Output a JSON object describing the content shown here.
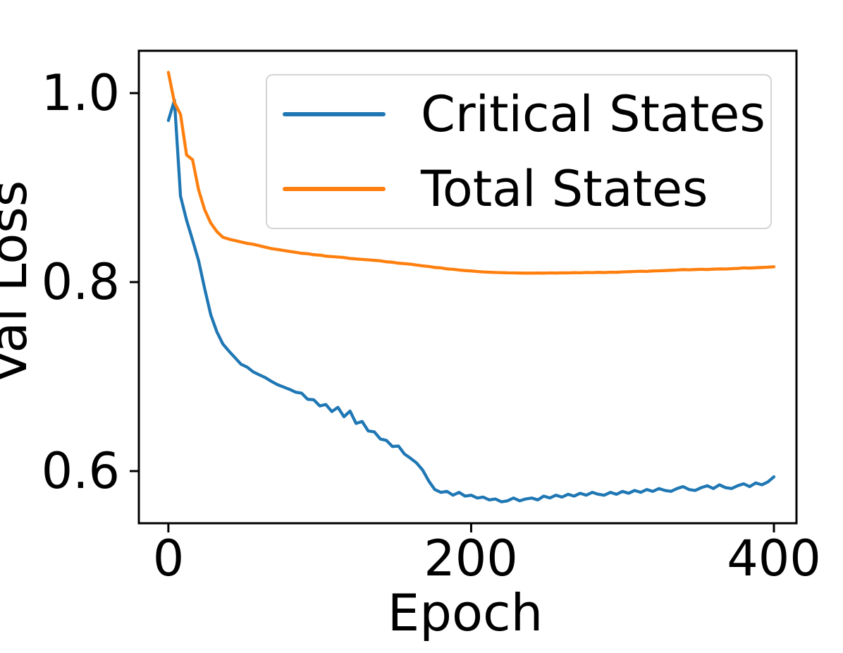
{
  "chart_data": {
    "type": "line",
    "title": "",
    "xlabel": "Epoch",
    "ylabel": "Val Loss",
    "xlim": [
      -19.5,
      414.9
    ],
    "ylim": [
      0.5448,
      1.0448
    ],
    "xticks": [
      0,
      200,
      400
    ],
    "yticks": [
      1.0,
      0.8,
      0.6
    ],
    "xtick_labels": [
      "0",
      "200",
      "400"
    ],
    "ytick_labels": [
      "1.0",
      "0.8",
      "0.6"
    ],
    "grid": false,
    "legend_position": "upper right inside",
    "axis_color": "#000000",
    "legend_edge_color": "#d4d4d4",
    "x": [
      0,
      4,
      8,
      12,
      16,
      20,
      24,
      28,
      32,
      36,
      40,
      44,
      48,
      52,
      56,
      60,
      64,
      68,
      72,
      76,
      80,
      84,
      88,
      92,
      96,
      100,
      104,
      108,
      112,
      116,
      120,
      124,
      128,
      132,
      136,
      140,
      144,
      148,
      152,
      156,
      160,
      164,
      168,
      172,
      176,
      180,
      184,
      188,
      192,
      196,
      200,
      204,
      208,
      212,
      216,
      220,
      224,
      228,
      232,
      236,
      240,
      244,
      248,
      252,
      256,
      260,
      264,
      268,
      272,
      276,
      280,
      284,
      288,
      292,
      296,
      300,
      304,
      308,
      312,
      316,
      320,
      324,
      328,
      332,
      336,
      340,
      344,
      348,
      352,
      356,
      360,
      364,
      368,
      372,
      376,
      380,
      384,
      388,
      392,
      396,
      400
    ],
    "series": [
      {
        "name": "Critical States",
        "color": "#1f77b4",
        "values": [
          0.971,
          0.9925,
          0.891,
          0.8655,
          0.8445,
          0.8225,
          0.793,
          0.7655,
          0.7475,
          0.7345,
          0.727,
          0.72,
          0.713,
          0.71,
          0.705,
          0.702,
          0.699,
          0.695,
          0.6915,
          0.689,
          0.6865,
          0.6835,
          0.6825,
          0.676,
          0.6755,
          0.669,
          0.6705,
          0.663,
          0.6675,
          0.6575,
          0.6635,
          0.6505,
          0.6525,
          0.6425,
          0.6415,
          0.634,
          0.6325,
          0.626,
          0.6265,
          0.618,
          0.6135,
          0.6085,
          0.601,
          0.5895,
          0.5805,
          0.5775,
          0.5785,
          0.5745,
          0.5775,
          0.5735,
          0.5745,
          0.5715,
          0.5725,
          0.5695,
          0.5705,
          0.5675,
          0.5685,
          0.5715,
          0.5685,
          0.5705,
          0.5715,
          0.5695,
          0.5735,
          0.5715,
          0.5745,
          0.5725,
          0.5755,
          0.5735,
          0.5765,
          0.5745,
          0.5775,
          0.5755,
          0.5745,
          0.5775,
          0.5755,
          0.5785,
          0.5765,
          0.5795,
          0.5775,
          0.5805,
          0.5785,
          0.5815,
          0.5795,
          0.5785,
          0.5815,
          0.5835,
          0.5805,
          0.5795,
          0.5825,
          0.5845,
          0.5815,
          0.5855,
          0.5825,
          0.5815,
          0.5845,
          0.5865,
          0.5835,
          0.5875,
          0.5855,
          0.5885,
          0.594
        ]
      },
      {
        "name": "Total States",
        "color": "#ff7f0e",
        "values": [
          1.022,
          0.99,
          0.9775,
          0.9345,
          0.9295,
          0.8975,
          0.8765,
          0.8625,
          0.8535,
          0.8475,
          0.8455,
          0.844,
          0.8425,
          0.841,
          0.84,
          0.8385,
          0.837,
          0.8355,
          0.8345,
          0.8335,
          0.8325,
          0.8315,
          0.8305,
          0.83,
          0.829,
          0.8285,
          0.8275,
          0.827,
          0.8265,
          0.826,
          0.825,
          0.8245,
          0.824,
          0.8235,
          0.823,
          0.8225,
          0.8215,
          0.821,
          0.82,
          0.8195,
          0.819,
          0.818,
          0.8172,
          0.8165,
          0.8155,
          0.815,
          0.814,
          0.8135,
          0.8128,
          0.8122,
          0.8118,
          0.8112,
          0.8108,
          0.8105,
          0.8102,
          0.81,
          0.8098,
          0.8097,
          0.8096,
          0.8095,
          0.8095,
          0.8096,
          0.8095,
          0.8097,
          0.8096,
          0.8098,
          0.8097,
          0.81,
          0.8098,
          0.8102,
          0.81,
          0.8103,
          0.8101,
          0.8105,
          0.8103,
          0.8108,
          0.811,
          0.8112,
          0.8115,
          0.8113,
          0.8118,
          0.812,
          0.8122,
          0.8125,
          0.8128,
          0.8132,
          0.813,
          0.8133,
          0.8135,
          0.8133,
          0.8137,
          0.814,
          0.8138,
          0.8142,
          0.8145,
          0.815,
          0.8148,
          0.8152,
          0.8155,
          0.8158,
          0.8162
        ]
      }
    ]
  }
}
